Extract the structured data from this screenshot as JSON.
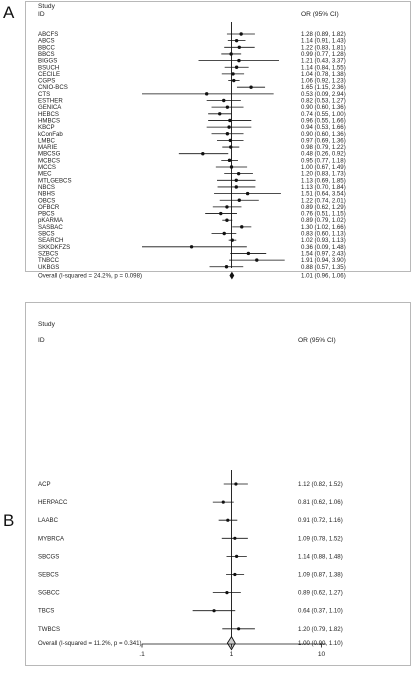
{
  "panels": {
    "a": {
      "letter": "A"
    },
    "b": {
      "letter": "B"
    }
  },
  "chart_data": [
    {
      "type": "forest",
      "panel": "A",
      "study_header": "Study",
      "id_header": "ID",
      "or_header": "OR (95% CI)",
      "log_scale": true,
      "xlim": [
        0.05,
        20
      ],
      "reference_line": 1,
      "rows": [
        {
          "study": "ABCFS",
          "or": 1.28,
          "lo": 0.89,
          "hi": 1.82,
          "text": "1.28 (0.89, 1.82)"
        },
        {
          "study": "ABCS",
          "or": 1.14,
          "lo": 0.91,
          "hi": 1.43,
          "text": "1.14 (0.91, 1.43)"
        },
        {
          "study": "BBCC",
          "or": 1.22,
          "lo": 0.83,
          "hi": 1.81,
          "text": "1.22 (0.83, 1.81)"
        },
        {
          "study": "BBCS",
          "or": 0.99,
          "lo": 0.77,
          "hi": 1.28,
          "text": "0.99 (0.77, 1.28)"
        },
        {
          "study": "BIGGS",
          "or": 1.21,
          "lo": 0.43,
          "hi": 3.37,
          "text": "1.21 (0.43, 3.37)"
        },
        {
          "study": "BSUCH",
          "or": 1.14,
          "lo": 0.84,
          "hi": 1.55,
          "text": "1.14 (0.84, 1.55)"
        },
        {
          "study": "CECILE",
          "or": 1.04,
          "lo": 0.78,
          "hi": 1.38,
          "text": "1.04 (0.78, 1.38)"
        },
        {
          "study": "CGPS",
          "or": 1.06,
          "lo": 0.92,
          "hi": 1.23,
          "text": "1.06 (0.92, 1.23)"
        },
        {
          "study": "CNIO-BCS",
          "or": 1.65,
          "lo": 1.15,
          "hi": 2.36,
          "text": "1.65 (1.15, 2.36)"
        },
        {
          "study": "CTS",
          "or": 0.53,
          "lo": 0.09,
          "hi": 2.94,
          "text": "0.53 (0.09, 2.94)"
        },
        {
          "study": "ESTHER",
          "or": 0.82,
          "lo": 0.53,
          "hi": 1.27,
          "text": "0.82 (0.53, 1.27)"
        },
        {
          "study": "GENICA",
          "or": 0.9,
          "lo": 0.6,
          "hi": 1.36,
          "text": "0.90 (0.60, 1.36)"
        },
        {
          "study": "HEBCS",
          "or": 0.74,
          "lo": 0.55,
          "hi": 1.0,
          "text": "0.74 (0.55, 1.00)"
        },
        {
          "study": "HMBCS",
          "or": 0.96,
          "lo": 0.55,
          "hi": 1.66,
          "text": "0.96 (0.55, 1.66)"
        },
        {
          "study": "KBCP",
          "or": 0.94,
          "lo": 0.53,
          "hi": 1.66,
          "text": "0.94 (0.53, 1.66)"
        },
        {
          "study": "kConFab",
          "or": 0.9,
          "lo": 0.6,
          "hi": 1.36,
          "text": "0.90 (0.60, 1.36)"
        },
        {
          "study": "LMBC",
          "or": 0.97,
          "lo": 0.69,
          "hi": 1.36,
          "text": "0.97 (0.69, 1.36)"
        },
        {
          "study": "MARIE",
          "or": 0.98,
          "lo": 0.79,
          "hi": 1.22,
          "text": "0.98 (0.79, 1.22)"
        },
        {
          "study": "MBCSG",
          "or": 0.48,
          "lo": 0.26,
          "hi": 0.92,
          "text": "0.48 (0.26, 0.92)"
        },
        {
          "study": "MCBCS",
          "or": 0.95,
          "lo": 0.77,
          "hi": 1.18,
          "text": "0.95 (0.77, 1.18)"
        },
        {
          "study": "MCCS",
          "or": 1.0,
          "lo": 0.67,
          "hi": 1.49,
          "text": "1.00 (0.67, 1.49)"
        },
        {
          "study": "MEC",
          "or": 1.2,
          "lo": 0.83,
          "hi": 1.73,
          "text": "1.20 (0.83, 1.73)"
        },
        {
          "study": "MTLGEBCS",
          "or": 1.13,
          "lo": 0.69,
          "hi": 1.85,
          "text": "1.13 (0.69, 1.85)"
        },
        {
          "study": "NBCS",
          "or": 1.13,
          "lo": 0.7,
          "hi": 1.84,
          "text": "1.13 (0.70, 1.84)"
        },
        {
          "study": "NBHS",
          "or": 1.51,
          "lo": 0.64,
          "hi": 3.54,
          "text": "1.51 (0.64, 3.54)"
        },
        {
          "study": "OBCS",
          "or": 1.22,
          "lo": 0.74,
          "hi": 2.01,
          "text": "1.22 (0.74, 2.01)"
        },
        {
          "study": "OFBCR",
          "or": 0.89,
          "lo": 0.62,
          "hi": 1.29,
          "text": "0.89 (0.62, 1.29)"
        },
        {
          "study": "PBCS",
          "or": 0.76,
          "lo": 0.51,
          "hi": 1.15,
          "text": "0.76 (0.51, 1.15)"
        },
        {
          "study": "pKARMA",
          "or": 0.89,
          "lo": 0.79,
          "hi": 1.02,
          "text": "0.89 (0.79, 1.02)"
        },
        {
          "study": "SASBAC",
          "or": 1.3,
          "lo": 1.02,
          "hi": 1.66,
          "text": "1.30 (1.02, 1.66)"
        },
        {
          "study": "SBCS",
          "or": 0.83,
          "lo": 0.6,
          "hi": 1.13,
          "text": "0.83 (0.60, 1.13)"
        },
        {
          "study": "SEARCH",
          "or": 1.02,
          "lo": 0.93,
          "hi": 1.13,
          "text": "1.02 (0.93, 1.13)"
        },
        {
          "study": "SKKDKFZS",
          "or": 0.36,
          "lo": 0.09,
          "hi": 1.48,
          "text": "0.36 (0.09, 1.48)"
        },
        {
          "study": "SZBCS",
          "or": 1.54,
          "lo": 0.97,
          "hi": 2.43,
          "text": "1.54 (0.97, 2.43)"
        },
        {
          "study": "TNBCC",
          "or": 1.91,
          "lo": 0.94,
          "hi": 3.9,
          "text": "1.91 (0.94, 3.90)"
        },
        {
          "study": "UKBGS",
          "or": 0.88,
          "lo": 0.57,
          "hi": 1.35,
          "text": "0.88 (0.57, 1.35)"
        }
      ],
      "overall": {
        "label": "Overall  (I-squared = 24.2%, p = 0.098)",
        "or": 1.01,
        "lo": 0.96,
        "hi": 1.06,
        "text": "1.01 (0.96, 1.06)"
      }
    },
    {
      "type": "forest",
      "panel": "B",
      "study_header": "Study",
      "id_header": "ID",
      "or_header": "OR (95% CI)",
      "log_scale": true,
      "xlim": [
        0.05,
        20
      ],
      "reference_line": 1,
      "x_ticks": [
        0.1,
        1,
        10
      ],
      "x_tick_labels": [
        ".1",
        "1",
        "10"
      ],
      "rows": [
        {
          "study": "ACP",
          "or": 1.12,
          "lo": 0.82,
          "hi": 1.52,
          "text": "1.12 (0.82, 1.52)"
        },
        {
          "study": "HERPACC",
          "or": 0.81,
          "lo": 0.62,
          "hi": 1.06,
          "text": "0.81 (0.62, 1.06)"
        },
        {
          "study": "LAABC",
          "or": 0.91,
          "lo": 0.72,
          "hi": 1.16,
          "text": "0.91 (0.72, 1.16)"
        },
        {
          "study": "MYBRCA",
          "or": 1.09,
          "lo": 0.78,
          "hi": 1.52,
          "text": "1.09 (0.78, 1.52)"
        },
        {
          "study": "SBCGS",
          "or": 1.14,
          "lo": 0.88,
          "hi": 1.48,
          "text": "1.14 (0.88, 1.48)"
        },
        {
          "study": "SEBCS",
          "or": 1.09,
          "lo": 0.87,
          "hi": 1.38,
          "text": "1.09 (0.87, 1.38)"
        },
        {
          "study": "SGBCC",
          "or": 0.89,
          "lo": 0.62,
          "hi": 1.27,
          "text": "0.89 (0.62, 1.27)"
        },
        {
          "study": "TBCS",
          "or": 0.64,
          "lo": 0.37,
          "hi": 1.1,
          "text": "0.64 (0.37, 1.10)"
        },
        {
          "study": "TWBCS",
          "or": 1.2,
          "lo": 0.79,
          "hi": 1.82,
          "text": "1.20 (0.79, 1.82)"
        }
      ],
      "overall": {
        "label": "Overall  (I-squared = 11.2%, p = 0.341)",
        "or": 1.0,
        "lo": 0.9,
        "hi": 1.1,
        "text": "1.00 (0.90, 1.10)"
      }
    }
  ]
}
